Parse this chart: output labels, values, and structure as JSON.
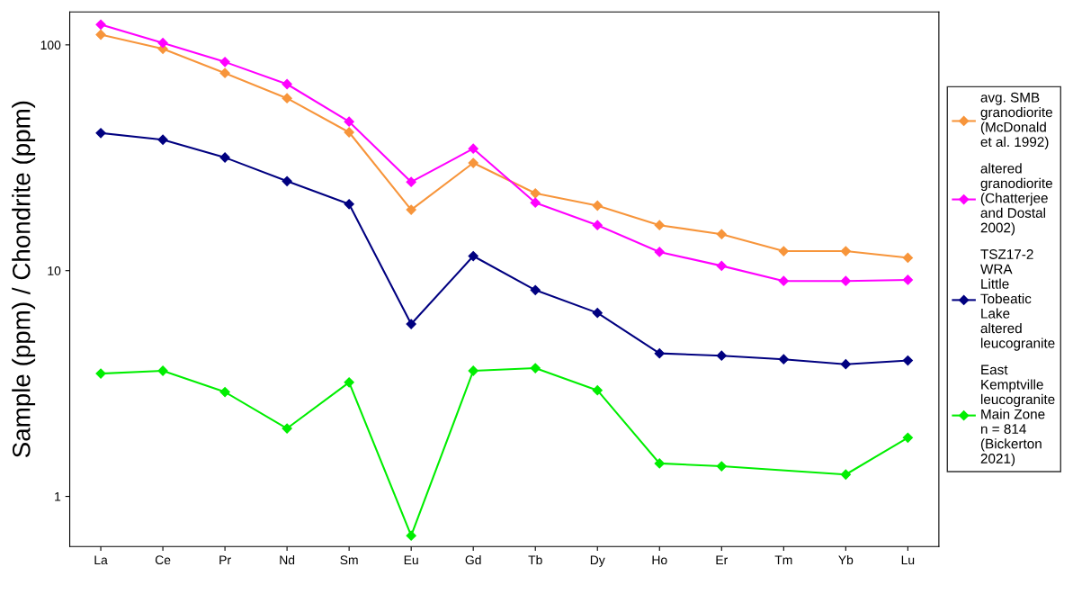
{
  "chart_data": {
    "type": "line",
    "ylabel": "Sample (ppm) / Chondrite (ppm)",
    "categories": [
      "La",
      "Ce",
      "Pr",
      "Nd",
      "Sm",
      "Eu",
      "Gd",
      "Tb",
      "Dy",
      "Ho",
      "Er",
      "Tm",
      "Yb",
      "Lu"
    ],
    "series": [
      {
        "name": "avg. SMB\ngranodiorite\n(McDonald\net al. 1992)",
        "color": "#f7953b",
        "values": [
          111,
          96,
          75,
          58,
          41,
          18.6,
          30,
          22,
          19.4,
          15.9,
          14.5,
          12.2,
          12.2,
          11.4
        ]
      },
      {
        "name": "altered\ngranodiorite\n(Chatterjee\nand Dostal\n2002)",
        "color": "#ff00ff",
        "values": [
          123,
          102,
          84,
          67,
          45.7,
          24.7,
          34.7,
          20,
          15.9,
          12.1,
          10.5,
          9.0,
          9.0,
          9.1
        ]
      },
      {
        "name": "TSZ17-2\nWRA\nLittle\nTobeatic\nLake\naltered\nleucogranite",
        "color": "#000080",
        "values": [
          40.7,
          38,
          31.7,
          24.9,
          19.7,
          5.8,
          11.6,
          8.2,
          6.5,
          4.3,
          4.2,
          4.05,
          3.85,
          4.0
        ]
      },
      {
        "name": "East\nKemptville\nleucogranite\nMain Zone\nn = 814\n(Bickerton\n2021)",
        "color": "#00ee00",
        "values": [
          3.5,
          3.6,
          2.9,
          2.0,
          3.2,
          0.67,
          3.6,
          3.7,
          2.95,
          1.4,
          1.36,
          null,
          1.25,
          1.82
        ]
      }
    ],
    "log": "y",
    "ylim": [
      0.6,
      140
    ],
    "yticks": [
      1,
      10,
      100
    ],
    "grid": false,
    "legend": "right",
    "marker": "diamond",
    "line_style": "solid"
  }
}
